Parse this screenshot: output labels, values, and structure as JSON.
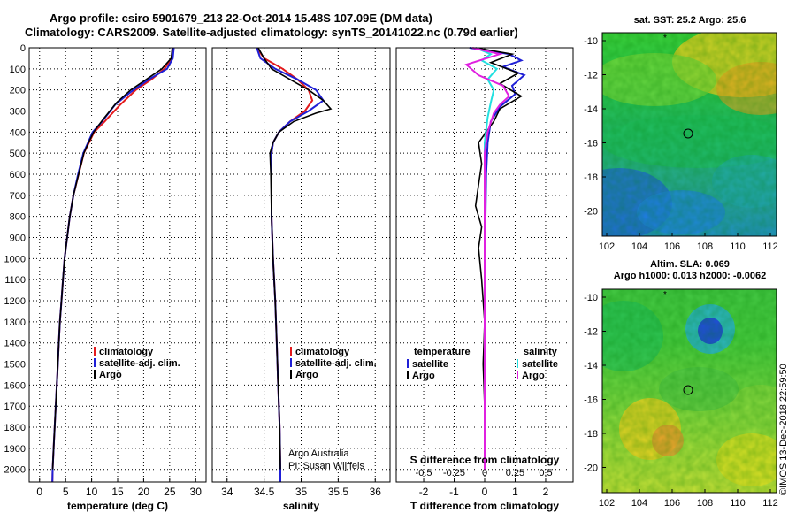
{
  "header": {
    "line1": "Argo profile: csiro 5901679_213 22-Oct-2014 15.48S 107.09E (DM data)",
    "line2": "Climatology: CARS2009. Satellite-adjusted climatology: synTS_20141022.nc (0.79d earlier)"
  },
  "colors": {
    "clim": "#e41a1c",
    "sat": "#1f1fd6",
    "argo": "#000000",
    "sal": "#22e0e0",
    "sal_argo": "#e020e0"
  },
  "depth_axis": {
    "ticks": [
      "0",
      "100",
      "200",
      "300",
      "400",
      "500",
      "600",
      "700",
      "800",
      "900",
      "1000",
      "1100",
      "1200",
      "1300",
      "1400",
      "1500",
      "1600",
      "1700",
      "1800",
      "1900",
      "2000"
    ]
  },
  "chart_data": [
    {
      "type": "line",
      "panel": "temperature",
      "xlabel": "temperature (deg C)",
      "ylabel": "depth",
      "xlim": [
        -2,
        32
      ],
      "ylim": [
        0,
        2060
      ],
      "xticks": [
        "0",
        "5",
        "10",
        "15",
        "20",
        "25",
        "30"
      ],
      "xtick_values": [
        0,
        5,
        10,
        15,
        20,
        25,
        30
      ],
      "legend": [
        "climatology",
        "satellite-adj. clim.",
        "Argo"
      ],
      "series": [
        {
          "name": "climatology",
          "color": "clim",
          "points": [
            [
              25.6,
              0
            ],
            [
              25.4,
              50
            ],
            [
              24,
              100
            ],
            [
              21.5,
              150
            ],
            [
              18.5,
              200
            ],
            [
              15.5,
              270
            ],
            [
              12.5,
              350
            ],
            [
              10.5,
              400
            ],
            [
              9.5,
              450
            ],
            [
              8.5,
              500
            ],
            [
              7.5,
              600
            ],
            [
              6.5,
              700
            ],
            [
              5.8,
              800
            ],
            [
              5.3,
              900
            ],
            [
              4.8,
              1000
            ],
            [
              4.5,
              1100
            ],
            [
              4.2,
              1200
            ],
            [
              3.9,
              1300
            ],
            [
              3.7,
              1400
            ],
            [
              3.5,
              1500
            ],
            [
              3.3,
              1600
            ],
            [
              3.1,
              1700
            ],
            [
              2.9,
              1800
            ],
            [
              2.7,
              1900
            ],
            [
              2.5,
              2000
            ],
            [
              2.45,
              2060
            ]
          ]
        },
        {
          "name": "satellite-adj. clim.",
          "color": "sat",
          "points": [
            [
              25.8,
              0
            ],
            [
              25.6,
              50
            ],
            [
              24.5,
              100
            ],
            [
              21,
              150
            ],
            [
              17.5,
              210
            ],
            [
              14.5,
              270
            ],
            [
              12,
              350
            ],
            [
              10.2,
              400
            ],
            [
              9.3,
              450
            ],
            [
              8.4,
              500
            ],
            [
              7.4,
              600
            ],
            [
              6.5,
              700
            ],
            [
              5.8,
              800
            ],
            [
              5.3,
              900
            ],
            [
              4.8,
              1000
            ],
            [
              4.5,
              1100
            ],
            [
              4.2,
              1200
            ],
            [
              3.9,
              1300
            ],
            [
              3.7,
              1400
            ],
            [
              3.5,
              1500
            ],
            [
              3.3,
              1600
            ],
            [
              3.1,
              1700
            ],
            [
              2.9,
              1800
            ],
            [
              2.7,
              1900
            ],
            [
              2.5,
              2000
            ],
            [
              2.45,
              2060
            ]
          ]
        },
        {
          "name": "Argo",
          "color": "argo",
          "points": [
            [
              25.5,
              0
            ],
            [
              25.3,
              50
            ],
            [
              23.5,
              100
            ],
            [
              20.5,
              150
            ],
            [
              17.5,
              200
            ],
            [
              14.8,
              260
            ],
            [
              12.2,
              340
            ],
            [
              10.4,
              400
            ],
            [
              9.4,
              450
            ],
            [
              8.5,
              500
            ],
            [
              7.5,
              600
            ],
            [
              6.5,
              700
            ],
            [
              5.8,
              800
            ],
            [
              5.3,
              900
            ],
            [
              4.8,
              1000
            ],
            [
              4.5,
              1100
            ],
            [
              4.2,
              1200
            ],
            [
              3.9,
              1300
            ],
            [
              3.7,
              1400
            ],
            [
              3.5,
              1500
            ],
            [
              3.3,
              1600
            ],
            [
              3.1,
              1700
            ],
            [
              2.9,
              1800
            ],
            [
              2.7,
              1900
            ],
            [
              2.5,
              2000
            ]
          ]
        }
      ]
    },
    {
      "type": "line",
      "panel": "salinity",
      "xlabel": "salinity",
      "ylabel": "depth",
      "xlim": [
        33.8,
        36.2
      ],
      "ylim": [
        0,
        2060
      ],
      "xticks": [
        "34",
        "34.5",
        "35",
        "35.5",
        "36"
      ],
      "xtick_values": [
        34,
        34.5,
        35,
        35.5,
        36
      ],
      "legend": [
        "climatology",
        "satellite-adj. clim.",
        "Argo"
      ],
      "credit": [
        "Argo Australia",
        "PI: Susan Wijffels"
      ],
      "series": [
        {
          "name": "climatology",
          "color": "clim",
          "points": [
            [
              34.4,
              0
            ],
            [
              34.5,
              50
            ],
            [
              34.75,
              100
            ],
            [
              34.95,
              150
            ],
            [
              35.1,
              200
            ],
            [
              35.15,
              250
            ],
            [
              35.05,
              300
            ],
            [
              34.85,
              350
            ],
            [
              34.7,
              400
            ],
            [
              34.62,
              450
            ],
            [
              34.6,
              500
            ],
            [
              34.6,
              600
            ],
            [
              34.6,
              800
            ],
            [
              34.62,
              1000
            ],
            [
              34.65,
              1200
            ],
            [
              34.67,
              1400
            ],
            [
              34.69,
              1600
            ],
            [
              34.71,
              1800
            ],
            [
              34.72,
              2000
            ],
            [
              34.72,
              2060
            ]
          ]
        },
        {
          "name": "satellite-adj. clim.",
          "color": "sat",
          "points": [
            [
              34.4,
              0
            ],
            [
              34.45,
              50
            ],
            [
              34.65,
              100
            ],
            [
              34.95,
              150
            ],
            [
              35.2,
              200
            ],
            [
              35.3,
              250
            ],
            [
              35.1,
              300
            ],
            [
              34.85,
              350
            ],
            [
              34.7,
              400
            ],
            [
              34.62,
              450
            ],
            [
              34.6,
              500
            ],
            [
              34.6,
              600
            ],
            [
              34.6,
              800
            ],
            [
              34.62,
              1000
            ],
            [
              34.65,
              1200
            ],
            [
              34.67,
              1400
            ],
            [
              34.69,
              1600
            ],
            [
              34.71,
              1800
            ],
            [
              34.72,
              2000
            ],
            [
              34.72,
              2060
            ]
          ]
        },
        {
          "name": "Argo",
          "color": "argo",
          "points": [
            [
              34.42,
              0
            ],
            [
              34.5,
              50
            ],
            [
              34.6,
              100
            ],
            [
              34.85,
              150
            ],
            [
              35.1,
              200
            ],
            [
              35.3,
              250
            ],
            [
              35.4,
              290
            ],
            [
              35.2,
              310
            ],
            [
              34.9,
              350
            ],
            [
              34.7,
              400
            ],
            [
              34.62,
              450
            ],
            [
              34.58,
              500
            ],
            [
              34.59,
              600
            ],
            [
              34.6,
              800
            ],
            [
              34.62,
              1000
            ],
            [
              34.65,
              1200
            ],
            [
              34.67,
              1400
            ],
            [
              34.69,
              1600
            ],
            [
              34.71,
              1800
            ],
            [
              34.72,
              2000
            ]
          ]
        }
      ]
    },
    {
      "type": "line",
      "panel": "difference",
      "xlabel": "T difference from climatology",
      "xlabel_top": "S difference from climatology",
      "xlim": [
        -2.9,
        2.9
      ],
      "ylim": [
        0,
        2060
      ],
      "xticks": [
        "-2",
        "-1",
        "0",
        "1",
        "2"
      ],
      "xtick_values": [
        -2,
        -1,
        0,
        1,
        2
      ],
      "s_ticks": [
        "-0.5",
        "-0.25",
        "0",
        "0.25",
        "0.5"
      ],
      "s_tick_values": [
        -2,
        -1,
        0,
        1,
        2
      ],
      "legend_left_header": "temperature",
      "legend_right_header": "salinity",
      "legend_left": [
        "satellite",
        "Argo"
      ],
      "legend_right": [
        "satellite",
        "Argo"
      ],
      "series": [
        {
          "name": "T satellite",
          "color": "sat",
          "points": [
            [
              -0.5,
              0
            ],
            [
              0.8,
              30
            ],
            [
              1.2,
              60
            ],
            [
              0.6,
              90
            ],
            [
              1.3,
              130
            ],
            [
              0.9,
              180
            ],
            [
              1.0,
              220
            ],
            [
              0.5,
              280
            ],
            [
              0.2,
              350
            ],
            [
              0.1,
              450
            ],
            [
              0.05,
              600
            ],
            [
              0.03,
              800
            ],
            [
              0.02,
              1200
            ],
            [
              0.01,
              2000
            ]
          ]
        },
        {
          "name": "T Argo",
          "color": "argo",
          "points": [
            [
              -0.3,
              0
            ],
            [
              0.9,
              30
            ],
            [
              0.2,
              70
            ],
            [
              1.1,
              120
            ],
            [
              0.5,
              170
            ],
            [
              1.2,
              230
            ],
            [
              0.5,
              290
            ],
            [
              0.3,
              350
            ],
            [
              -0.2,
              450
            ],
            [
              -0.1,
              550
            ],
            [
              -0.2,
              650
            ],
            [
              -0.3,
              750
            ],
            [
              -0.1,
              850
            ],
            [
              -0.2,
              950
            ],
            [
              -0.1,
              1100
            ],
            [
              0,
              1300
            ],
            [
              -0.05,
              1500
            ],
            [
              0,
              1700
            ],
            [
              0,
              2000
            ]
          ]
        },
        {
          "name": "S satellite",
          "color": "sal",
          "points": [
            [
              -0.3,
              0
            ],
            [
              0.2,
              30
            ],
            [
              -0.1,
              60
            ],
            [
              0.4,
              100
            ],
            [
              0.1,
              150
            ],
            [
              0.3,
              200
            ],
            [
              0.2,
              260
            ],
            [
              0.1,
              330
            ],
            [
              0,
              450
            ],
            [
              0,
              600
            ],
            [
              0.02,
              800
            ],
            [
              0,
              1200
            ],
            [
              0,
              2000
            ]
          ]
        },
        {
          "name": "S Argo",
          "color": "sal_argo",
          "points": [
            [
              -0.4,
              0
            ],
            [
              0.5,
              30
            ],
            [
              -0.6,
              80
            ],
            [
              -0.2,
              130
            ],
            [
              0.6,
              180
            ],
            [
              0.8,
              230
            ],
            [
              0.5,
              270
            ],
            [
              0.3,
              310
            ],
            [
              0.1,
              400
            ],
            [
              0,
              500
            ],
            [
              0,
              800
            ],
            [
              0,
              1200
            ],
            [
              0,
              1500
            ],
            [
              0,
              2000
            ]
          ]
        }
      ]
    }
  ],
  "maps": {
    "sst": {
      "title": "sat. SST: 25.2 Argo: 25.6",
      "lat_ticks": [
        "-10",
        "-12",
        "-14",
        "-16",
        "-18",
        "-20"
      ],
      "lon_ticks": [
        "102",
        "104",
        "106",
        "108",
        "110",
        "112"
      ]
    },
    "sla": {
      "title1": "Altim. SLA: 0.069",
      "title2": "Argo h1000: 0.013 h2000: -0.0062",
      "lat_ticks": [
        "-10",
        "-12",
        "-14",
        "-16",
        "-18",
        "-20"
      ],
      "lon_ticks": [
        "102",
        "104",
        "106",
        "108",
        "110",
        "112"
      ]
    }
  },
  "stamp": "©IMOS 13-Dec-2018 22:59:50"
}
